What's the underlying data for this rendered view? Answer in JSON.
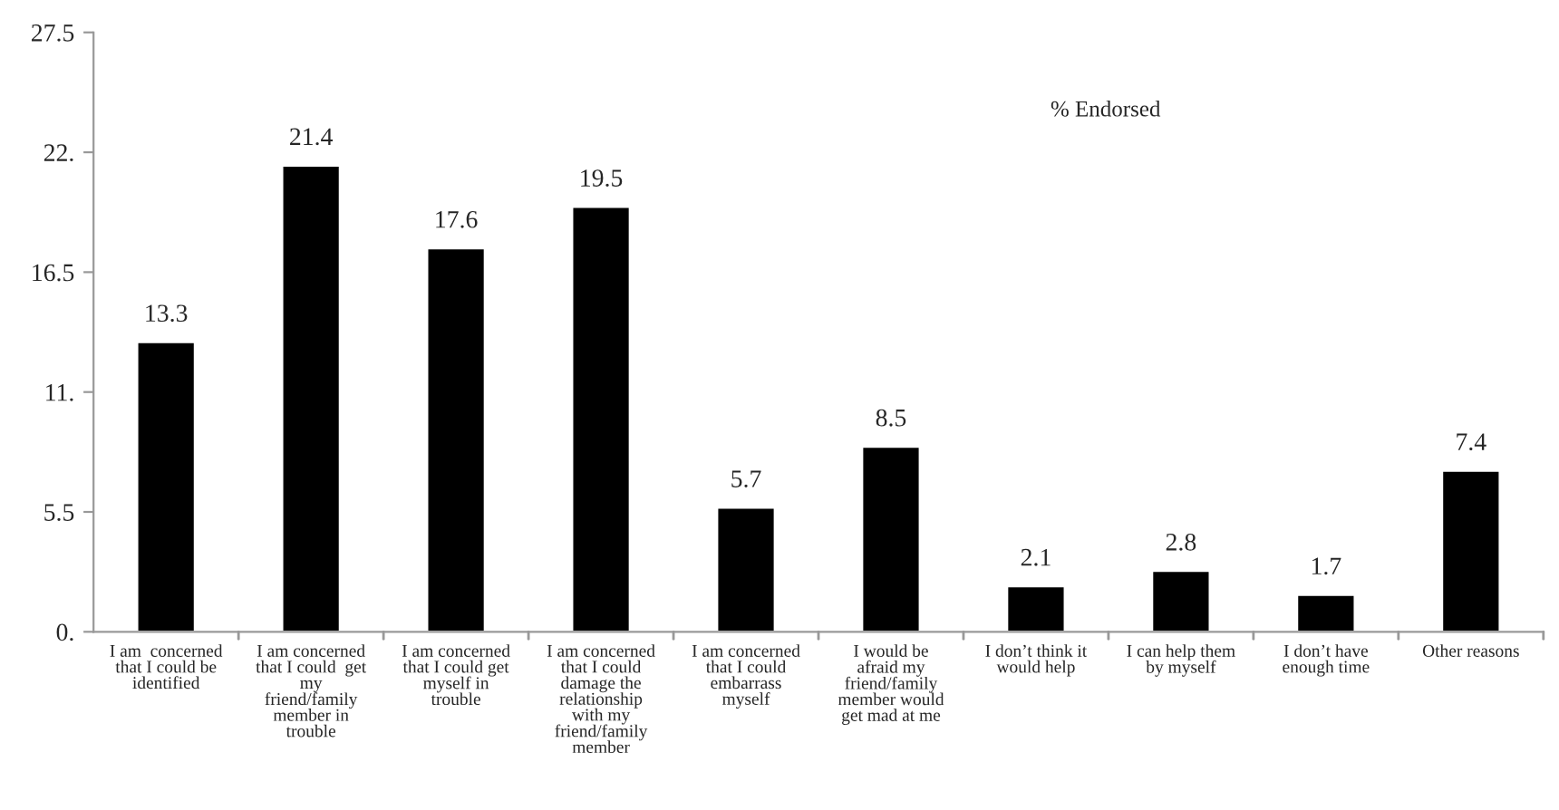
{
  "chart_data": {
    "type": "bar",
    "categories": [
      "I am  concerned\nthat I could be\nidentified",
      "I am concerned\nthat I could  get\nmy\nfriend/family\nmember in\ntrouble",
      "I am concerned\nthat I could get\nmyself in\ntrouble",
      "I am concerned\nthat I could\ndamage the\nrelationship\nwith my\nfriend/family\nmember",
      "I am concerned\nthat I could\nembarrass\nmyself",
      "I would be\nafraid my\nfriend/family\nmember would\nget mad at me",
      "I don’t think it\nwould help",
      "I can help them\nby myself",
      "I don’t have\nenough time",
      "Other reasons"
    ],
    "values": [
      13.3,
      21.4,
      17.6,
      19.5,
      5.7,
      8.5,
      2.1,
      2.8,
      1.7,
      7.4
    ],
    "color": "#000000",
    "data_labels": true,
    "ylim": [
      0,
      27.5
    ],
    "yticks": [
      {
        "value": 0,
        "label": "0."
      },
      {
        "value": 5.5,
        "label": "5.5"
      },
      {
        "value": 11,
        "label": "11."
      },
      {
        "value": 16.5,
        "label": "16.5"
      },
      {
        "value": 22,
        "label": "22."
      },
      {
        "value": 27.5,
        "label": "27.5"
      }
    ],
    "annotations": [
      "% Endorsed"
    ],
    "grid": false,
    "legend": false
  }
}
